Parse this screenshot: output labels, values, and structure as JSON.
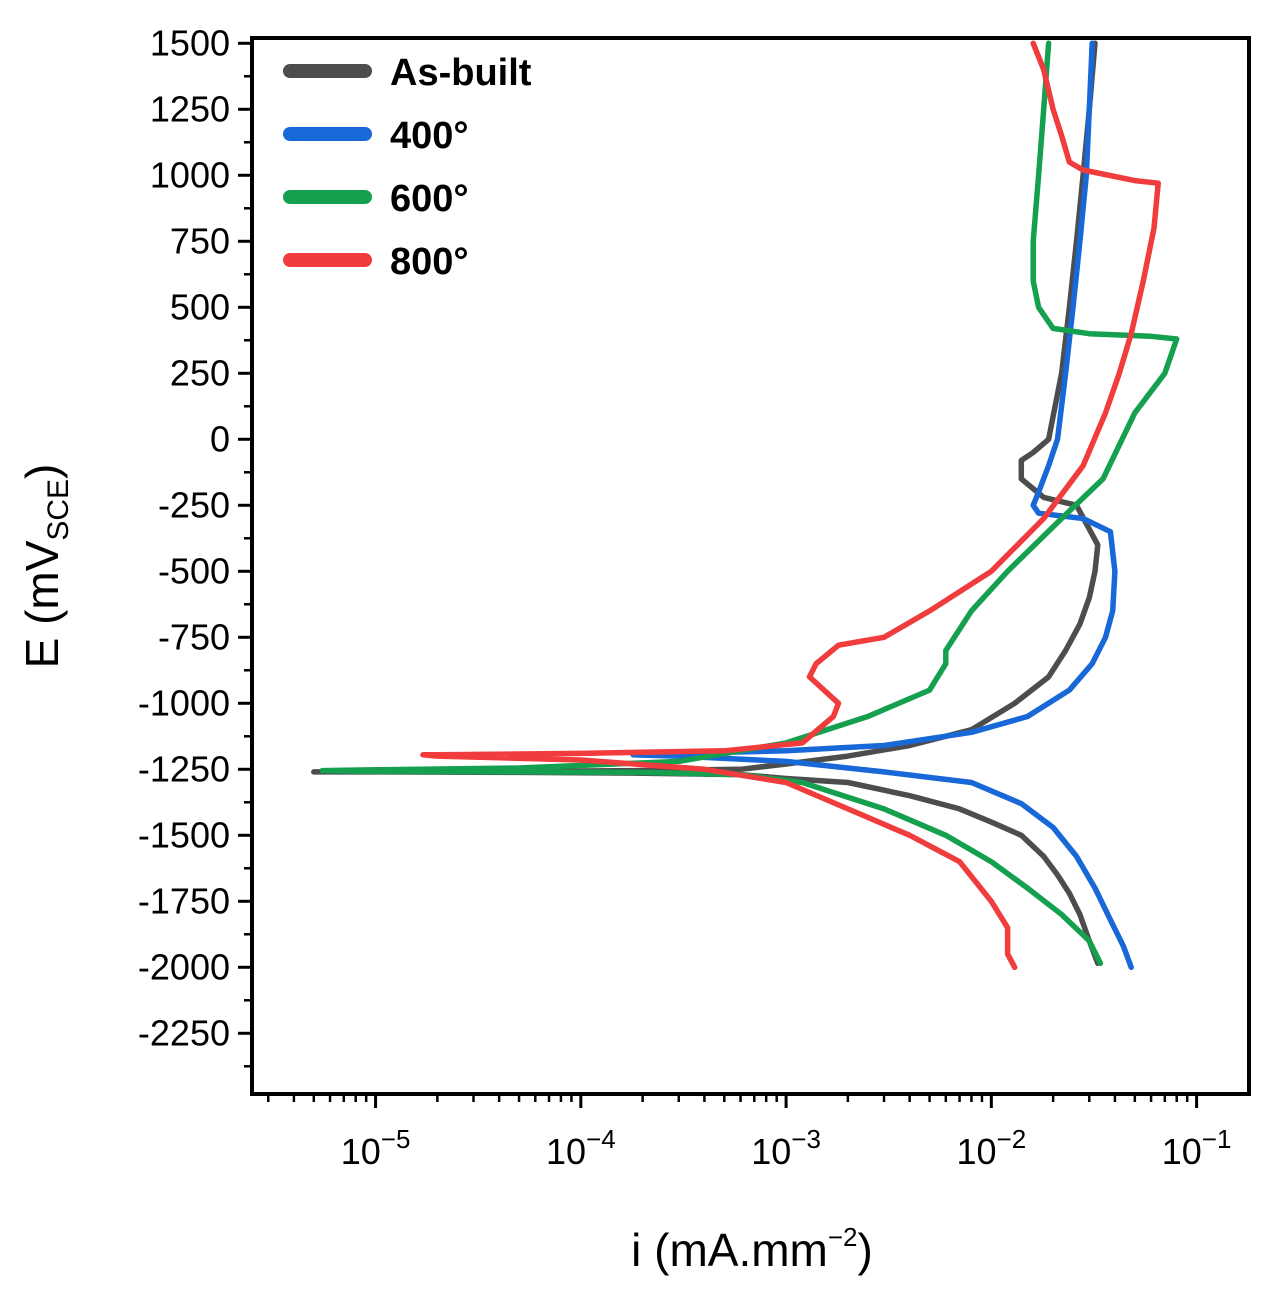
{
  "chart_data": {
    "type": "line",
    "xlabel": {
      "base": "i (mA.mm",
      "sup": "−2",
      "end": ")"
    },
    "ylabel": {
      "base": "E (mV",
      "sub": "SCE",
      "end": ")"
    },
    "x_scale": "log",
    "xlim": [
      2.5e-06,
      0.18
    ],
    "ylim": [
      -2480,
      1520
    ],
    "y_ticks": [
      "1500",
      "1250",
      "1000",
      "750",
      "500",
      "250",
      "0",
      "-250",
      "-500",
      "-750",
      "-1000",
      "-1250",
      "-1500",
      "-1750",
      "-2000",
      "-2250"
    ],
    "y_tick_values": [
      1500,
      1250,
      1000,
      750,
      500,
      250,
      0,
      -250,
      -500,
      -750,
      -1000,
      -1250,
      -1500,
      -1750,
      -2000,
      -2250
    ],
    "x_ticks": [
      {
        "value": 1e-05,
        "base": "10",
        "exp": "−5"
      },
      {
        "value": 0.0001,
        "base": "10",
        "exp": "−4"
      },
      {
        "value": 0.001,
        "base": "10",
        "exp": "−3"
      },
      {
        "value": 0.01,
        "base": "10",
        "exp": "−2"
      },
      {
        "value": 0.1,
        "base": "10",
        "exp": "−1"
      }
    ],
    "legend_position": "top-left",
    "series": [
      {
        "name": "As-built",
        "color": "#4d4d4d",
        "x": [
          0.032,
          0.03,
          0.028,
          0.026,
          0.024,
          0.022,
          0.019,
          0.016,
          0.014,
          0.014,
          0.018,
          0.026,
          0.033,
          0.032,
          0.03,
          0.027,
          0.023,
          0.019,
          0.013,
          0.008,
          0.004,
          0.002,
          0.001,
          0.0006,
          0.0002,
          5e-05,
          1e-05,
          5e-06,
          1e-05,
          5e-05,
          0.0002,
          0.0006,
          0.001,
          0.002,
          0.004,
          0.007,
          0.01,
          0.014,
          0.018,
          0.021,
          0.024,
          0.027,
          0.03,
          0.033
        ],
        "y": [
          1500,
          1250,
          1000,
          750,
          500,
          250,
          0,
          -50,
          -80,
          -150,
          -220,
          -250,
          -400,
          -500,
          -600,
          -700,
          -800,
          -900,
          -1000,
          -1100,
          -1160,
          -1200,
          -1230,
          -1250,
          -1255,
          -1258,
          -1260,
          -1260,
          -1260,
          -1262,
          -1265,
          -1270,
          -1285,
          -1300,
          -1350,
          -1400,
          -1450,
          -1500,
          -1580,
          -1650,
          -1720,
          -1800,
          -1900,
          -1985
        ]
      },
      {
        "name": "400°",
        "color": "#1868d8",
        "x": [
          0.031,
          0.03,
          0.029,
          0.027,
          0.025,
          0.023,
          0.021,
          0.019,
          0.017,
          0.016,
          0.017,
          0.028,
          0.038,
          0.04,
          0.039,
          0.036,
          0.031,
          0.024,
          0.015,
          0.008,
          0.003,
          0.001,
          0.0003,
          0.00018,
          0.0003,
          0.001,
          0.003,
          0.008,
          0.014,
          0.02,
          0.026,
          0.032,
          0.038,
          0.044,
          0.048
        ],
        "y": [
          1500,
          1250,
          1000,
          750,
          500,
          250,
          0,
          -100,
          -200,
          -250,
          -280,
          -300,
          -350,
          -500,
          -650,
          -750,
          -850,
          -950,
          -1050,
          -1110,
          -1160,
          -1180,
          -1190,
          -1195,
          -1200,
          -1220,
          -1260,
          -1300,
          -1380,
          -1470,
          -1580,
          -1700,
          -1820,
          -1920,
          -2000
        ]
      },
      {
        "name": "600°",
        "color": "#15a050",
        "x": [
          0.019,
          0.018,
          0.017,
          0.016,
          0.016,
          0.017,
          0.02,
          0.03,
          0.06,
          0.08,
          0.07,
          0.05,
          0.035,
          0.022,
          0.012,
          0.008,
          0.006,
          0.006,
          0.005,
          0.0025,
          0.001,
          0.0003,
          5e-05,
          1e-05,
          5.5e-06,
          1e-05,
          5e-05,
          0.0002,
          0.0006,
          0.0012,
          0.003,
          0.006,
          0.01,
          0.015,
          0.022,
          0.03,
          0.034
        ],
        "y": [
          1500,
          1250,
          1000,
          750,
          600,
          500,
          420,
          400,
          390,
          380,
          250,
          100,
          -150,
          -300,
          -500,
          -650,
          -800,
          -850,
          -950,
          -1050,
          -1150,
          -1220,
          -1245,
          -1252,
          -1255,
          -1258,
          -1260,
          -1262,
          -1270,
          -1300,
          -1400,
          -1500,
          -1600,
          -1700,
          -1800,
          -1900,
          -1985
        ]
      },
      {
        "name": "800°",
        "color": "#f03c3c",
        "x": [
          0.016,
          0.018,
          0.02,
          0.022,
          0.024,
          0.028,
          0.05,
          0.065,
          0.062,
          0.055,
          0.048,
          0.042,
          0.036,
          0.028,
          0.018,
          0.01,
          0.005,
          0.003,
          0.0018,
          0.0014,
          0.0013,
          0.0018,
          0.0017,
          0.0012,
          0.0005,
          0.0001,
          2e-05,
          1.7e-05,
          2e-05,
          0.0001,
          0.0004,
          0.001,
          0.002,
          0.004,
          0.007,
          0.01,
          0.012,
          0.012,
          0.013
        ],
        "y": [
          1500,
          1400,
          1250,
          1150,
          1050,
          1020,
          980,
          970,
          800,
          600,
          400,
          250,
          100,
          -100,
          -300,
          -500,
          -650,
          -750,
          -780,
          -850,
          -900,
          -1000,
          -1050,
          -1150,
          -1180,
          -1190,
          -1195,
          -1195,
          -1200,
          -1215,
          -1250,
          -1300,
          -1400,
          -1500,
          -1600,
          -1750,
          -1850,
          -1950,
          -2000
        ]
      }
    ]
  }
}
